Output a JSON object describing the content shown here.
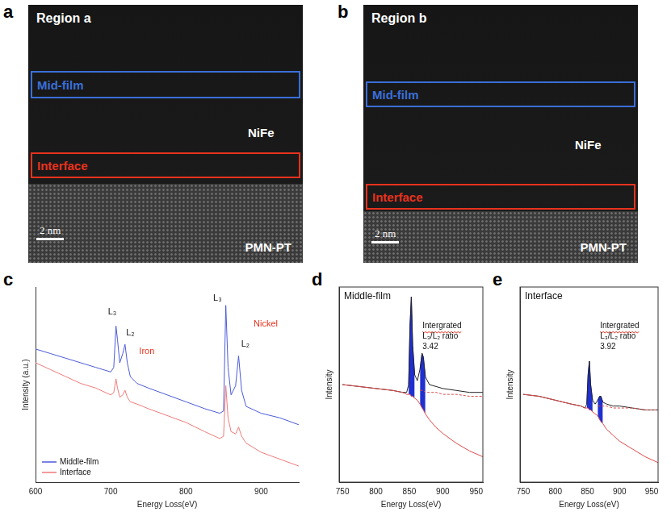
{
  "images": [
    {
      "panel": "a",
      "title": "Region a",
      "boxes": [
        {
          "label": "Mid-film",
          "color": "#3a6fd8"
        },
        {
          "label": "Interface",
          "color": "#e8321e"
        }
      ],
      "film": "NiFe",
      "substrate": "PMN-PT",
      "scale_bar": "2 nm"
    },
    {
      "panel": "b",
      "title": "Region b",
      "boxes": [
        {
          "label": "Mid-film",
          "color": "#3a6fd8"
        },
        {
          "label": "Interface",
          "color": "#e8321e"
        }
      ],
      "film": "NiFe",
      "substrate": "PMN-PT",
      "scale_bar": "2 nm"
    }
  ],
  "chart_data": [
    {
      "panel": "c",
      "type": "line",
      "x": [
        600,
        620,
        640,
        660,
        680,
        700,
        704,
        707,
        709,
        712,
        716,
        719,
        722,
        726,
        735,
        750,
        775,
        800,
        825,
        845,
        850,
        853,
        856,
        860,
        866,
        870,
        874,
        880,
        900,
        925,
        950
      ],
      "series": [
        {
          "name": "Middle-film",
          "color": "#4a5ad8",
          "values": [
            78,
            76,
            74,
            72,
            70,
            68,
            70,
            88,
            82,
            72,
            76,
            80,
            72,
            66,
            63,
            61,
            58,
            55,
            52,
            50,
            51,
            97,
            70,
            58,
            62,
            75,
            60,
            53,
            50,
            48,
            45
          ]
        },
        {
          "name": "Interface",
          "color": "#f07a7a",
          "values": [
            72,
            69,
            66,
            63,
            61,
            58,
            59,
            65,
            61,
            57,
            58,
            60,
            57,
            55,
            54,
            52,
            49,
            46,
            42,
            39,
            40,
            62,
            48,
            42,
            41,
            44,
            40,
            37,
            33,
            30,
            27
          ]
        }
      ],
      "xlabel": "Energy Loss(eV)",
      "ylabel": "Intensity (a.u.)",
      "xlim": [
        600,
        950
      ],
      "xticks": [
        600,
        700,
        800,
        900
      ],
      "ylim": [
        20,
        105
      ],
      "tick_labels": "x",
      "grid": false,
      "legend": "lower left",
      "annotations": [
        {
          "text": "L₃",
          "x": 702,
          "y": 94
        },
        {
          "text": "L₂",
          "x": 726,
          "y": 85
        },
        {
          "text": "Iron",
          "x": 748,
          "y": 77,
          "color": "#e8321e"
        },
        {
          "text": "L₃",
          "x": 842,
          "y": 100
        },
        {
          "text": "L₂",
          "x": 879,
          "y": 80
        },
        {
          "text": "Nickel",
          "x": 906,
          "y": 89,
          "color": "#e8321e"
        }
      ]
    },
    {
      "panel": "d",
      "type": "line",
      "title": "Middle-film",
      "x": [
        750,
        775,
        800,
        825,
        840,
        846,
        849,
        851,
        853,
        855,
        858,
        862,
        866,
        869,
        871,
        874,
        880,
        890,
        900,
        920,
        940,
        960
      ],
      "series": [
        {
          "color": "#e04848",
          "values": [
            50,
            49,
            48,
            47,
            46,
            45,
            45,
            45,
            44,
            44,
            43,
            42,
            40,
            38,
            37,
            35,
            32,
            28,
            25,
            20,
            16,
            13
          ]
        },
        {
          "color": "#e04848",
          "line_style": "dashed",
          "values": [
            null,
            null,
            null,
            null,
            null,
            null,
            null,
            null,
            null,
            null,
            null,
            null,
            47,
            47,
            47,
            46,
            46,
            46,
            45,
            45,
            44,
            44
          ]
        },
        {
          "color": "#222222",
          "values": [
            50,
            49,
            48,
            47,
            46,
            46,
            50,
            80,
            95,
            70,
            55,
            52,
            58,
            66,
            64,
            54,
            50,
            49,
            48,
            47,
            46,
            46
          ]
        },
        {
          "color": "#1f2fd0",
          "type": "area",
          "values": [
            null,
            null,
            null,
            null,
            null,
            null,
            50,
            80,
            95,
            70,
            55,
            null,
            58,
            66,
            64,
            54,
            null,
            null,
            null,
            null,
            null,
            null
          ]
        }
      ],
      "xlabel": "Energy Loss(eV)",
      "ylabel": "Intensity",
      "xlim": [
        745,
        960
      ],
      "xticks": [
        750,
        800,
        850,
        900,
        950
      ],
      "ylim": [
        0,
        100
      ],
      "tick_labels": "x",
      "grid": false,
      "annotation": {
        "lines": [
          "Intergrated",
          "L₃/L₂ ratio"
        ],
        "ratio": 3.42
      }
    },
    {
      "panel": "e",
      "type": "line",
      "title": "Interface",
      "x": [
        750,
        775,
        800,
        825,
        840,
        846,
        849,
        851,
        853,
        855,
        858,
        862,
        866,
        869,
        871,
        874,
        880,
        890,
        900,
        920,
        940,
        960
      ],
      "series": [
        {
          "color": "#e04848",
          "values": [
            45,
            44,
            42,
            40,
            39,
            38,
            38,
            38,
            37,
            37,
            36,
            35,
            34,
            32,
            31,
            30,
            27,
            24,
            21,
            17,
            13,
            10
          ]
        },
        {
          "color": "#e04848",
          "line_style": "dashed",
          "values": [
            null,
            null,
            null,
            null,
            null,
            null,
            null,
            null,
            null,
            null,
            null,
            null,
            39,
            39,
            39,
            39,
            39,
            38,
            38,
            38,
            37,
            37
          ]
        },
        {
          "color": "#222222",
          "values": [
            45,
            44,
            42,
            40,
            39,
            38,
            40,
            55,
            62,
            50,
            42,
            40,
            42,
            44,
            44,
            41,
            40,
            39,
            39,
            38,
            37,
            37
          ]
        },
        {
          "color": "#1f2fd0",
          "type": "area",
          "values": [
            null,
            null,
            null,
            null,
            null,
            null,
            40,
            55,
            62,
            50,
            42,
            null,
            42,
            44,
            44,
            41,
            null,
            null,
            null,
            null,
            null,
            null
          ]
        }
      ],
      "xlabel": "Energy Loss(eV)",
      "ylabel": "Intensity",
      "xlim": [
        745,
        960
      ],
      "xticks": [
        750,
        800,
        850,
        900,
        950
      ],
      "ylim": [
        0,
        100
      ],
      "tick_labels": "x",
      "grid": false,
      "annotation": {
        "lines": [
          "Intergrated",
          "L₃/L₂ ratio"
        ],
        "ratio": 3.92
      }
    }
  ]
}
